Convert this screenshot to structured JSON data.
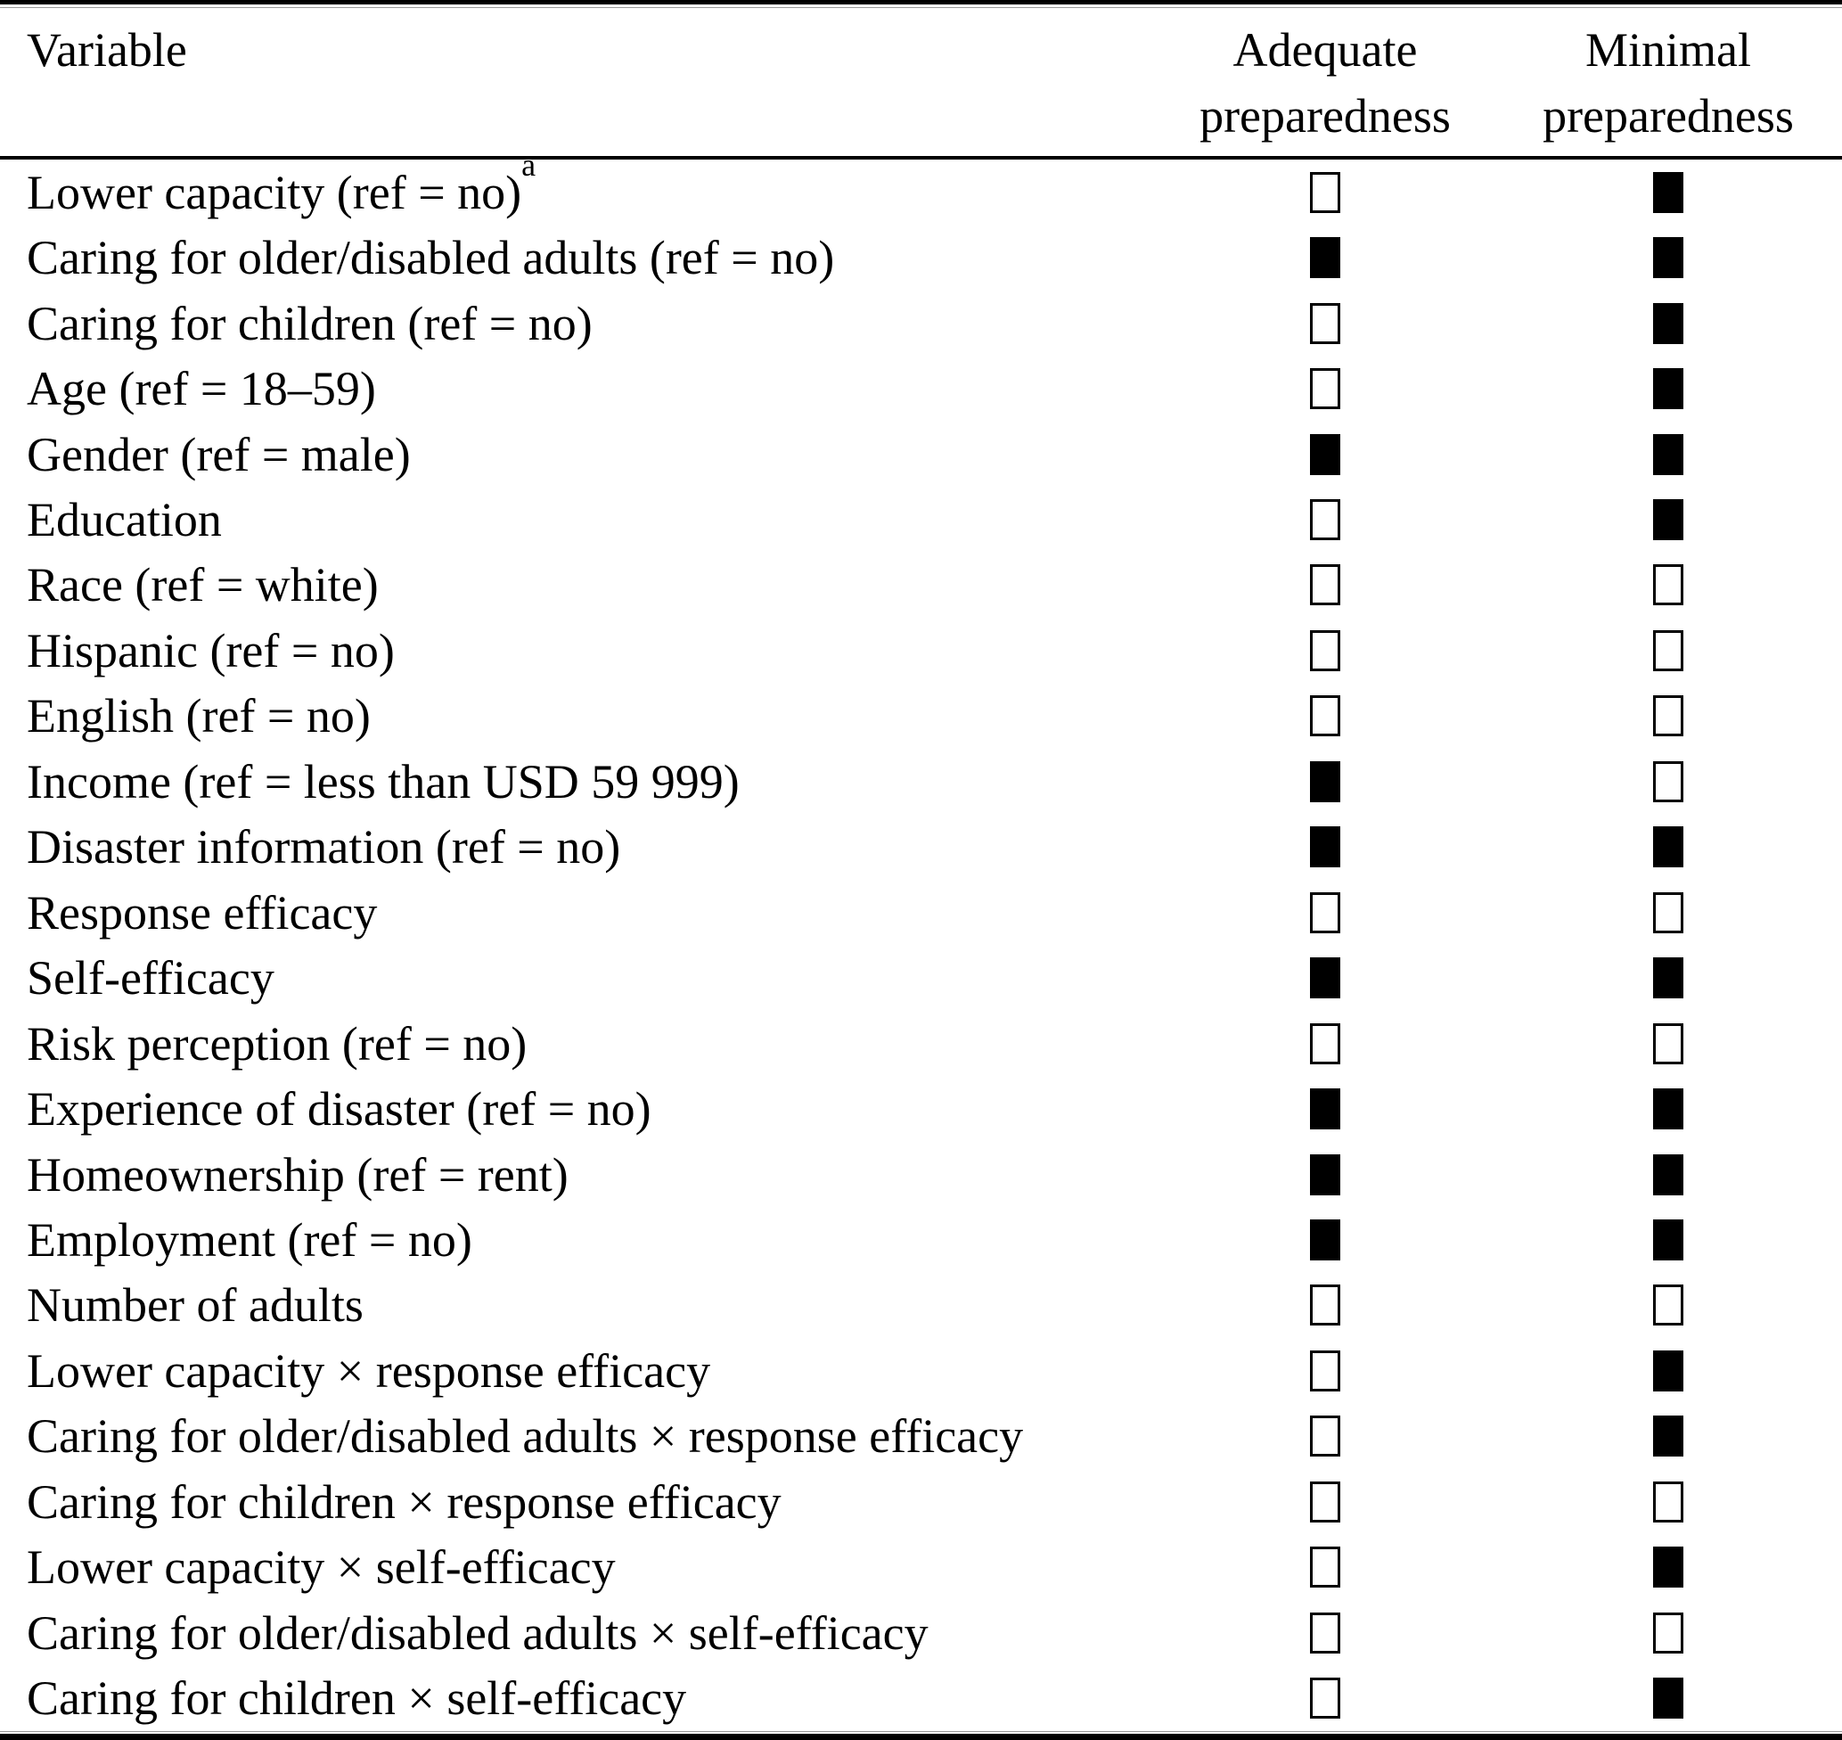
{
  "table": {
    "headers": {
      "variable": "Variable",
      "adequate": "Adequate preparedness",
      "minimal": "Minimal preparedness"
    },
    "icons": {
      "filled": "■",
      "empty": "□"
    },
    "colors": {
      "text": "#000000",
      "background": "#ffffff",
      "rule": "#000000"
    },
    "rows": [
      {
        "label": "Lower capacity (ref = no)",
        "sup": "a",
        "adequate": "empty",
        "minimal": "filled"
      },
      {
        "label": "Caring for older/disabled adults (ref = no)",
        "sup": "",
        "adequate": "filled",
        "minimal": "filled"
      },
      {
        "label": "Caring for children (ref = no)",
        "sup": "",
        "adequate": "empty",
        "minimal": "filled"
      },
      {
        "label": "Age (ref = 18–59)",
        "sup": "",
        "adequate": "empty",
        "minimal": "filled"
      },
      {
        "label": "Gender (ref = male)",
        "sup": "",
        "adequate": "filled",
        "minimal": "filled"
      },
      {
        "label": "Education",
        "sup": "",
        "adequate": "empty",
        "minimal": "filled"
      },
      {
        "label": "Race (ref = white)",
        "sup": "",
        "adequate": "empty",
        "minimal": "empty"
      },
      {
        "label": "Hispanic (ref = no)",
        "sup": "",
        "adequate": "empty",
        "minimal": "empty"
      },
      {
        "label": "English (ref = no)",
        "sup": "",
        "adequate": "empty",
        "minimal": "empty"
      },
      {
        "label": "Income (ref = less than USD 59 999)",
        "sup": "",
        "adequate": "filled",
        "minimal": "empty"
      },
      {
        "label": "Disaster information (ref = no)",
        "sup": "",
        "adequate": "filled",
        "minimal": "filled"
      },
      {
        "label": "Response efficacy",
        "sup": "",
        "adequate": "empty",
        "minimal": "empty"
      },
      {
        "label": "Self-efficacy",
        "sup": "",
        "adequate": "filled",
        "minimal": "filled"
      },
      {
        "label": "Risk perception (ref = no)",
        "sup": "",
        "adequate": "empty",
        "minimal": "empty"
      },
      {
        "label": "Experience of disaster (ref = no)",
        "sup": "",
        "adequate": "filled",
        "minimal": "filled"
      },
      {
        "label": "Homeownership (ref = rent)",
        "sup": "",
        "adequate": "filled",
        "minimal": "filled"
      },
      {
        "label": "Employment (ref = no)",
        "sup": "",
        "adequate": "filled",
        "minimal": "filled"
      },
      {
        "label": "Number of adults",
        "sup": "",
        "adequate": "empty",
        "minimal": "empty"
      },
      {
        "label": "Lower capacity × response efficacy",
        "sup": "",
        "adequate": "empty",
        "minimal": "filled"
      },
      {
        "label": "Caring for older/disabled adults × response efficacy",
        "sup": "",
        "adequate": "empty",
        "minimal": "filled"
      },
      {
        "label": "Caring for children × response efficacy",
        "sup": "",
        "adequate": "empty",
        "minimal": "empty"
      },
      {
        "label": "Lower capacity × self-efficacy",
        "sup": "",
        "adequate": "empty",
        "minimal": "filled"
      },
      {
        "label": "Caring for older/disabled adults × self-efficacy",
        "sup": "",
        "adequate": "empty",
        "minimal": "empty"
      },
      {
        "label": "Caring for children × self-efficacy",
        "sup": "",
        "adequate": "empty",
        "minimal": "filled"
      }
    ]
  }
}
